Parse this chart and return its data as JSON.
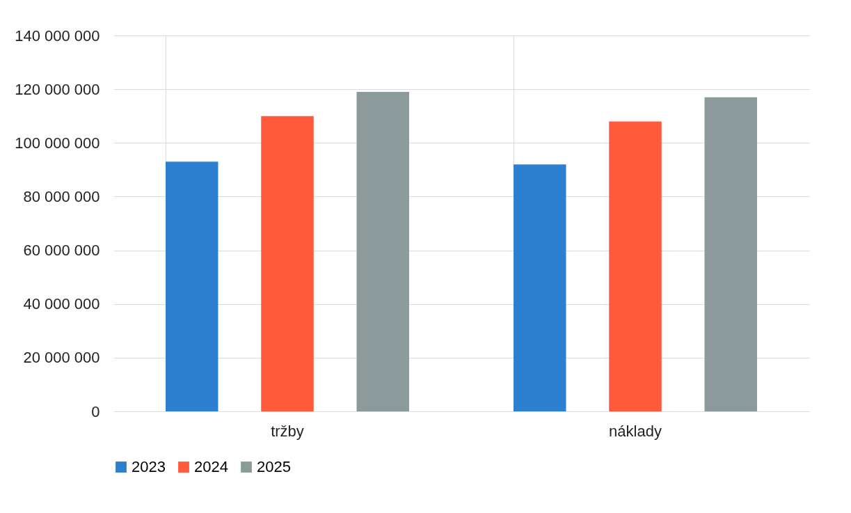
{
  "chart_data": {
    "type": "bar",
    "categories": [
      "tržby",
      "náklady"
    ],
    "series": [
      {
        "name": "2023",
        "color": "#2e7fd0",
        "values": [
          93000000,
          92000000
        ]
      },
      {
        "name": "2024",
        "color": "#ff5a3c",
        "values": [
          110000000,
          108000000
        ]
      },
      {
        "name": "2025",
        "color": "#8c9a9c",
        "values": [
          119000000,
          117000000
        ]
      }
    ],
    "ylim": [
      0,
      140000000
    ],
    "yticks": [
      {
        "value": 0,
        "label": "0"
      },
      {
        "value": 20000000,
        "label": "20 000 000"
      },
      {
        "value": 40000000,
        "label": "40 000 000"
      },
      {
        "value": 60000000,
        "label": "60 000 000"
      },
      {
        "value": 80000000,
        "label": "80 000 000"
      },
      {
        "value": 100000000,
        "label": "100 000 000"
      },
      {
        "value": 120000000,
        "label": "120 000 000"
      },
      {
        "value": 140000000,
        "label": "140 000 000"
      }
    ],
    "grid": true,
    "legend": "bottom"
  }
}
